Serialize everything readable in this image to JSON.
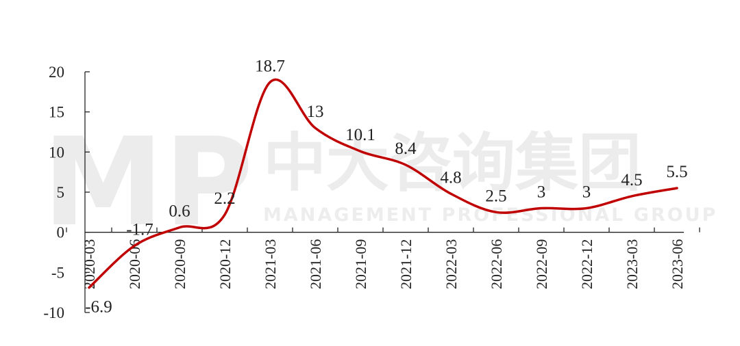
{
  "chart_data": {
    "type": "line",
    "categories": [
      "2020-03",
      "2020-06",
      "2020-09",
      "2020-12",
      "2021-03",
      "2021-06",
      "2021-09",
      "2021-12",
      "2022-03",
      "2022-06",
      "2022-09",
      "2022-12",
      "2023-03",
      "2023-06"
    ],
    "series": [
      {
        "values": [
          -6.9,
          -1.7,
          0.6,
          2.2,
          18.7,
          13,
          10.1,
          8.4,
          4.8,
          2.5,
          3,
          3,
          4.5,
          5.5
        ]
      }
    ],
    "ylim": [
      -10,
      20
    ],
    "yticks": [
      "-10",
      "-5",
      "0",
      "5",
      "10",
      "15",
      "20"
    ],
    "line_color": "#c00000",
    "grid": false,
    "legend": "none"
  },
  "watermark": {
    "logo": "MP",
    "chinese": "中大咨询集团",
    "english": "MANAGEMENT PROFESSIONAL GROUP"
  }
}
